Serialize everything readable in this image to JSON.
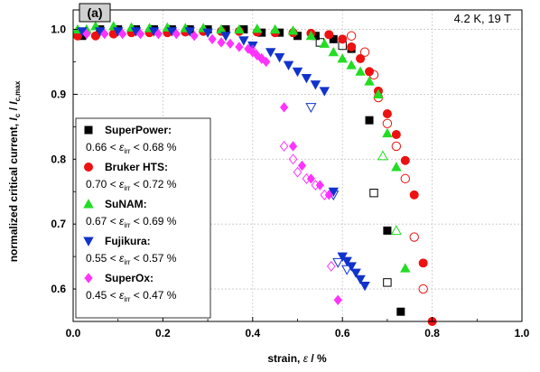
{
  "chart_data": {
    "type": "scatter",
    "panel_label": "(a)",
    "condition": "4.2 K, 19 T",
    "xlabel": "strain, ε / %",
    "ylabel": "normalized critical current, I_c / I_c,max",
    "xlim": [
      0.0,
      1.0
    ],
    "ylim": [
      0.55,
      1.03
    ],
    "xticks": [
      0.0,
      0.2,
      0.4,
      0.6,
      0.8,
      1.0
    ],
    "yticks": [
      0.6,
      0.7,
      0.8,
      0.9,
      1.0
    ],
    "xtick_labels": [
      "0.0",
      "0.2",
      "0.4",
      "0.6",
      "0.8",
      "1.0"
    ],
    "ytick_labels": [
      "0.6",
      "0.7",
      "0.8",
      "0.9",
      "1.0"
    ],
    "grid": true,
    "legend_position": "left",
    "series": [
      {
        "name": "SuperPower:",
        "range": "0.66 < ε_irr < 0.68 %",
        "marker": "square",
        "color": "#000000",
        "filled": [
          [
            0.02,
            0.99
          ],
          [
            0.06,
            1.0
          ],
          [
            0.1,
            1.0
          ],
          [
            0.14,
            1.0
          ],
          [
            0.18,
            1.0
          ],
          [
            0.22,
            1.0
          ],
          [
            0.26,
            1.0
          ],
          [
            0.3,
            1.0
          ],
          [
            0.34,
            1.0
          ],
          [
            0.38,
            1.0
          ],
          [
            0.42,
            0.995
          ],
          [
            0.46,
            0.995
          ],
          [
            0.5,
            0.99
          ],
          [
            0.54,
            0.99
          ],
          [
            0.58,
            0.985
          ],
          [
            0.62,
            0.97
          ],
          [
            0.66,
            0.86
          ],
          [
            0.7,
            0.69
          ],
          [
            0.73,
            0.565
          ]
        ],
        "open": [
          [
            0.55,
            0.98
          ],
          [
            0.6,
            0.975
          ],
          [
            0.67,
            0.748
          ],
          [
            0.7,
            0.61
          ]
        ]
      },
      {
        "name": "Bruker HTS:",
        "range": "0.70 < ε_irr < 0.72 %",
        "marker": "circle",
        "color": "#ee1111",
        "filled": [
          [
            0.01,
            0.99
          ],
          [
            0.05,
            0.99
          ],
          [
            0.09,
            0.993
          ],
          [
            0.13,
            0.995
          ],
          [
            0.17,
            0.995
          ],
          [
            0.21,
            0.995
          ],
          [
            0.25,
            0.996
          ],
          [
            0.29,
            0.997
          ],
          [
            0.33,
            0.997
          ],
          [
            0.37,
            0.997
          ],
          [
            0.41,
            0.996
          ],
          [
            0.45,
            0.995
          ],
          [
            0.49,
            0.995
          ],
          [
            0.53,
            0.994
          ],
          [
            0.57,
            0.992
          ],
          [
            0.6,
            0.985
          ],
          [
            0.62,
            0.973
          ],
          [
            0.64,
            0.955
          ],
          [
            0.66,
            0.935
          ],
          [
            0.68,
            0.905
          ],
          [
            0.7,
            0.87
          ],
          [
            0.72,
            0.838
          ],
          [
            0.74,
            0.798
          ],
          [
            0.76,
            0.745
          ],
          [
            0.78,
            0.64
          ],
          [
            0.8,
            0.55
          ]
        ],
        "open": [
          [
            0.62,
            0.99
          ],
          [
            0.65,
            0.965
          ],
          [
            0.67,
            0.93
          ],
          [
            0.68,
            0.895
          ],
          [
            0.7,
            0.855
          ],
          [
            0.72,
            0.82
          ],
          [
            0.74,
            0.77
          ],
          [
            0.76,
            0.68
          ],
          [
            0.78,
            0.6
          ]
        ]
      },
      {
        "name": "SuNAM:",
        "range": "0.67 < ε_irr < 0.69 %",
        "marker": "triangle-up",
        "color": "#22dd22",
        "filled": [
          [
            0.01,
            1.0
          ],
          [
            0.03,
            1.0
          ],
          [
            0.05,
            1.005
          ],
          [
            0.09,
            1.005
          ],
          [
            0.13,
            1.003
          ],
          [
            0.17,
            1.002
          ],
          [
            0.21,
            1.003
          ],
          [
            0.25,
            1.002
          ],
          [
            0.29,
            1.002
          ],
          [
            0.33,
            1.0
          ],
          [
            0.37,
            1.0
          ],
          [
            0.41,
            1.001
          ],
          [
            0.45,
            1.0
          ],
          [
            0.49,
            0.998
          ],
          [
            0.53,
            0.99
          ],
          [
            0.56,
            0.978
          ],
          [
            0.58,
            0.965
          ],
          [
            0.6,
            0.955
          ],
          [
            0.62,
            0.945
          ],
          [
            0.64,
            0.935
          ],
          [
            0.66,
            0.92
          ],
          [
            0.68,
            0.9
          ],
          [
            0.7,
            0.84
          ],
          [
            0.72,
            0.788
          ],
          [
            0.74,
            0.632
          ]
        ],
        "open": [
          [
            0.69,
            0.805
          ],
          [
            0.72,
            0.69
          ]
        ]
      },
      {
        "name": "Fujikura:",
        "range": "0.55 < ε_irr < 0.57 %",
        "marker": "triangle-down",
        "color": "#1133cc",
        "filled": [
          [
            0.02,
            0.997
          ],
          [
            0.06,
            0.997
          ],
          [
            0.1,
            0.997
          ],
          [
            0.14,
            0.997
          ],
          [
            0.18,
            0.997
          ],
          [
            0.22,
            0.997
          ],
          [
            0.26,
            0.997
          ],
          [
            0.3,
            0.995
          ],
          [
            0.34,
            0.99
          ],
          [
            0.38,
            0.983
          ],
          [
            0.4,
            0.975
          ],
          [
            0.44,
            0.965
          ],
          [
            0.46,
            0.957
          ],
          [
            0.48,
            0.945
          ],
          [
            0.5,
            0.935
          ],
          [
            0.52,
            0.925
          ],
          [
            0.54,
            0.915
          ],
          [
            0.56,
            0.905
          ],
          [
            0.58,
            0.75
          ],
          [
            0.6,
            0.65
          ],
          [
            0.61,
            0.643
          ],
          [
            0.62,
            0.635
          ],
          [
            0.63,
            0.625
          ],
          [
            0.64,
            0.615
          ],
          [
            0.65,
            0.605
          ]
        ],
        "open": [
          [
            0.53,
            0.88
          ],
          [
            0.58,
            0.745
          ],
          [
            0.59,
            0.641
          ],
          [
            0.61,
            0.63
          ]
        ]
      },
      {
        "name": "SuperOx:",
        "range": "0.45 < ε_irr < 0.47 %",
        "marker": "diamond",
        "color": "#ff33ff",
        "filled": [
          [
            0.03,
            0.993
          ],
          [
            0.07,
            0.993
          ],
          [
            0.11,
            0.993
          ],
          [
            0.15,
            0.993
          ],
          [
            0.19,
            0.993
          ],
          [
            0.23,
            0.993
          ],
          [
            0.27,
            0.99
          ],
          [
            0.31,
            0.985
          ],
          [
            0.33,
            0.98
          ],
          [
            0.35,
            0.978
          ],
          [
            0.37,
            0.973
          ],
          [
            0.39,
            0.97
          ],
          [
            0.4,
            0.965
          ],
          [
            0.41,
            0.96
          ],
          [
            0.42,
            0.955
          ],
          [
            0.43,
            0.95
          ],
          [
            0.47,
            0.88
          ],
          [
            0.49,
            0.82
          ],
          [
            0.51,
            0.79
          ],
          [
            0.53,
            0.77
          ],
          [
            0.55,
            0.76
          ],
          [
            0.57,
            0.745
          ],
          [
            0.59,
            0.583
          ]
        ],
        "open": [
          [
            0.4,
            0.968
          ],
          [
            0.42,
            0.955
          ],
          [
            0.47,
            0.82
          ],
          [
            0.49,
            0.8
          ],
          [
            0.5,
            0.78
          ],
          [
            0.52,
            0.77
          ],
          [
            0.54,
            0.76
          ],
          [
            0.56,
            0.745
          ],
          [
            0.575,
            0.635
          ]
        ]
      }
    ]
  }
}
